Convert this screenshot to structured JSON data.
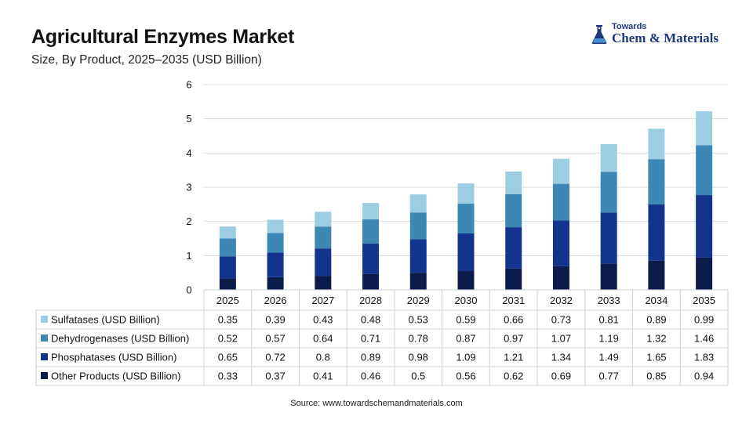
{
  "header": {
    "title": "Agricultural Enzymes Market",
    "subtitle": "Size, By Product, 2025–2035 (USD Billion)"
  },
  "logo": {
    "small_text": "Towards",
    "main_text": "Chem & Materials"
  },
  "footer": {
    "source": "Source: www.towardschemandmaterials.com"
  },
  "chart_data": {
    "type": "bar",
    "stacked": true,
    "title": "Agricultural Enzymes Market",
    "subtitle": "Size, By Product, 2025–2035 (USD Billion)",
    "categories": [
      "2025",
      "2026",
      "2027",
      "2028",
      "2029",
      "2030",
      "2031",
      "2032",
      "2033",
      "2034",
      "2035"
    ],
    "ylim": [
      0,
      6
    ],
    "yticks": [
      "0",
      "1",
      "2",
      "3",
      "4",
      "5",
      "6"
    ],
    "grid": true,
    "legend": "table-below",
    "series": [
      {
        "name": "Other Products (USD Billion)",
        "color": "#0b1c4a",
        "values": [
          0.33,
          0.37,
          0.41,
          0.46,
          0.5,
          0.56,
          0.62,
          0.69,
          0.77,
          0.85,
          0.94
        ],
        "labels": [
          "0.33",
          "0.37",
          "0.41",
          "0.46",
          "0.5",
          "0.56",
          "0.62",
          "0.69",
          "0.77",
          "0.85",
          "0.94"
        ]
      },
      {
        "name": "Phosphatases (USD Billion)",
        "color": "#12348c",
        "values": [
          0.65,
          0.72,
          0.8,
          0.89,
          0.98,
          1.09,
          1.21,
          1.34,
          1.49,
          1.65,
          1.83
        ],
        "labels": [
          "0.65",
          "0.72",
          "0.8",
          "0.89",
          "0.98",
          "1.09",
          "1.21",
          "1.34",
          "1.49",
          "1.65",
          "1.83"
        ]
      },
      {
        "name": "Dehydrogenases (USD Billion)",
        "color": "#3d87b5",
        "values": [
          0.52,
          0.57,
          0.64,
          0.71,
          0.78,
          0.87,
          0.97,
          1.07,
          1.19,
          1.32,
          1.46
        ],
        "labels": [
          "0.52",
          "0.57",
          "0.64",
          "0.71",
          "0.78",
          "0.87",
          "0.97",
          "1.07",
          "1.19",
          "1.32",
          "1.46"
        ]
      },
      {
        "name": "Sulfatases (USD Billion)",
        "color": "#9dcde3",
        "values": [
          0.35,
          0.39,
          0.43,
          0.48,
          0.53,
          0.59,
          0.66,
          0.73,
          0.81,
          0.89,
          0.99
        ],
        "labels": [
          "0.35",
          "0.39",
          "0.43",
          "0.48",
          "0.53",
          "0.59",
          "0.66",
          "0.73",
          "0.81",
          "0.89",
          "0.99"
        ]
      }
    ]
  }
}
